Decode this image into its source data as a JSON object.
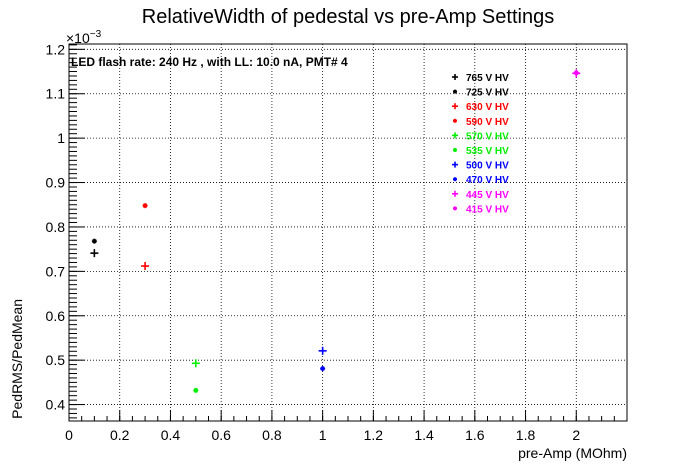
{
  "chart_data": {
    "type": "scatter",
    "title": "RelativeWidth of pedestal vs pre-Amp Settings",
    "xlabel": "pre-Amp (MOhm)",
    "ylabel": "PedRMS/PedMean",
    "y_exponent_label": "×10",
    "y_exponent_power": "−3",
    "annotation": "LED flash rate: 240 Hz , with LL: 10.0 nA, PMT# 4",
    "xlim": [
      0,
      2.2
    ],
    "ylim": [
      0.363,
      1.212
    ],
    "x_ticks": [
      {
        "value": 0,
        "label": "0"
      },
      {
        "value": 0.2,
        "label": "0.2"
      },
      {
        "value": 0.4,
        "label": "0.4"
      },
      {
        "value": 0.6,
        "label": "0.6"
      },
      {
        "value": 0.8,
        "label": "0.8"
      },
      {
        "value": 1.0,
        "label": "1"
      },
      {
        "value": 1.2,
        "label": "1.2"
      },
      {
        "value": 1.4,
        "label": "1.4"
      },
      {
        "value": 1.6,
        "label": "1.6"
      },
      {
        "value": 1.8,
        "label": "1.8"
      },
      {
        "value": 2.0,
        "label": "2"
      }
    ],
    "y_ticks": [
      {
        "value": 0.4,
        "label": "0.4"
      },
      {
        "value": 0.5,
        "label": "0.5"
      },
      {
        "value": 0.6,
        "label": "0.6"
      },
      {
        "value": 0.7,
        "label": "0.7"
      },
      {
        "value": 0.8,
        "label": "0.8"
      },
      {
        "value": 0.9,
        "label": "0.9"
      },
      {
        "value": 1.0,
        "label": "1"
      },
      {
        "value": 1.1,
        "label": "1.1"
      },
      {
        "value": 1.2,
        "label": "1.2"
      }
    ],
    "grid": true,
    "legend_position": "top-right",
    "series": [
      {
        "name": "765 V HV",
        "color": "#000000",
        "marker": "plus",
        "x": [
          0.1
        ],
        "y": [
          0.741
        ]
      },
      {
        "name": "725 V HV",
        "color": "#000000",
        "marker": "star",
        "x": [
          0.1
        ],
        "y": [
          0.768
        ]
      },
      {
        "name": "630 V HV",
        "color": "#ff0000",
        "marker": "plus",
        "x": [
          0.3
        ],
        "y": [
          0.712
        ]
      },
      {
        "name": "590 V HV",
        "color": "#ff0000",
        "marker": "star",
        "x": [
          0.3
        ],
        "y": [
          0.848
        ]
      },
      {
        "name": "570 V HV",
        "color": "#00ee00",
        "marker": "plus",
        "x": [
          0.5
        ],
        "y": [
          0.493
        ]
      },
      {
        "name": "535 V HV",
        "color": "#00ee00",
        "marker": "star",
        "x": [
          0.5
        ],
        "y": [
          0.432
        ]
      },
      {
        "name": "500 V HV",
        "color": "#0000ff",
        "marker": "plus",
        "x": [
          1.0
        ],
        "y": [
          0.521
        ]
      },
      {
        "name": "470 V HV",
        "color": "#0000ff",
        "marker": "star",
        "x": [
          1.0
        ],
        "y": [
          0.481
        ]
      },
      {
        "name": "445 V HV",
        "color": "#ff00ff",
        "marker": "plus",
        "x": [
          2.0
        ],
        "y": [
          1.146
        ]
      },
      {
        "name": "415 V HV",
        "color": "#ff00ff",
        "marker": "star",
        "x": [
          2.0
        ],
        "y": [
          1.147
        ]
      }
    ]
  }
}
